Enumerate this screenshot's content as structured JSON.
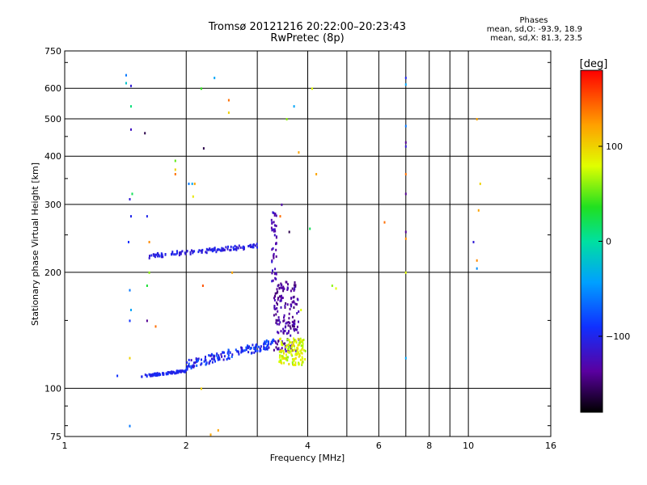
{
  "header": {
    "title": "Tromsø 20121216 20:22:00–20:23:43",
    "subtitle": "RwPretec (8p)"
  },
  "stats": {
    "heading": "Phases",
    "line_o": "mean, sd,O: -93.9, 18.9",
    "line_x": "mean, sd,X:  81.3, 23.5"
  },
  "colorbar": {
    "label": "[deg]",
    "min": -180,
    "max": 180,
    "ticks": [
      "100",
      "0",
      "−100"
    ],
    "tick_values": [
      100,
      0,
      -100
    ]
  },
  "chart_data": {
    "type": "scatter",
    "xlabel": "Frequency [MHz]",
    "ylabel": "Stationary phase Virtual Height [km]",
    "xscale": "log",
    "yscale": "log",
    "xlim": [
      1,
      16
    ],
    "ylim": [
      75,
      750
    ],
    "x_ticks": [
      1,
      2,
      4,
      6,
      8,
      10,
      16
    ],
    "x_tick_labels": [
      "1",
      "2",
      "4",
      "6",
      "8",
      "10",
      "16"
    ],
    "x_minor_ticks": [
      3,
      5,
      7,
      9
    ],
    "y_ticks": [
      75,
      100,
      200,
      300,
      400,
      500,
      600,
      750
    ],
    "y_tick_labels": [
      "75",
      "100",
      "200",
      "300",
      "400",
      "500",
      "600",
      "750"
    ],
    "grid": true,
    "clusters": [
      {
        "name_hint": "E-layer blue band",
        "x_range": [
          1.55,
          2.0
        ],
        "y_range": [
          107,
          112
        ],
        "count": 90,
        "phase": [
          -110,
          -90
        ]
      },
      {
        "name_hint": "E-layer rising trace",
        "x_range": [
          2.0,
          3.3
        ],
        "y_range": [
          112,
          135
        ],
        "count": 160,
        "phase": [
          -120,
          -70
        ]
      },
      {
        "name_hint": "Es upper trace",
        "x_range": [
          1.62,
          3.05
        ],
        "y_range": [
          218,
          238
        ],
        "count": 110,
        "phase": [
          -115,
          -95
        ]
      },
      {
        "name_hint": "F-layer cusp purple",
        "x_range": [
          3.3,
          3.8
        ],
        "y_range": [
          125,
          190
        ],
        "count": 170,
        "phase": [
          -150,
          -120
        ]
      },
      {
        "name_hint": "F-layer vertical rise",
        "x_range": [
          3.25,
          3.35
        ],
        "y_range": [
          190,
          290
        ],
        "count": 45,
        "phase": [
          -140,
          -110
        ]
      },
      {
        "name_hint": "X-mode yellow-green",
        "x_range": [
          3.4,
          3.95
        ],
        "y_range": [
          115,
          135
        ],
        "count": 130,
        "phase": [
          60,
          100
        ]
      },
      {
        "name_hint": "scattered noise",
        "x_range": [
          1.3,
          11
        ],
        "y_range": [
          76,
          680
        ],
        "count": 120,
        "phase": [
          -180,
          180
        ]
      }
    ],
    "points": [
      {
        "x": 1.42,
        "y": 650,
        "phase": -60
      },
      {
        "x": 1.42,
        "y": 620,
        "phase": -20
      },
      {
        "x": 1.46,
        "y": 610,
        "phase": -110
      },
      {
        "x": 1.46,
        "y": 540,
        "phase": 10
      },
      {
        "x": 1.46,
        "y": 470,
        "phase": -120
      },
      {
        "x": 1.45,
        "y": 310,
        "phase": -110
      },
      {
        "x": 1.46,
        "y": 280,
        "phase": -100
      },
      {
        "x": 1.47,
        "y": 320,
        "phase": 20
      },
      {
        "x": 1.44,
        "y": 240,
        "phase": -90
      },
      {
        "x": 1.45,
        "y": 180,
        "phase": -60
      },
      {
        "x": 1.46,
        "y": 160,
        "phase": -40
      },
      {
        "x": 1.45,
        "y": 150,
        "phase": -90
      },
      {
        "x": 1.45,
        "y": 120,
        "phase": 100
      },
      {
        "x": 1.45,
        "y": 80,
        "phase": -60
      },
      {
        "x": 1.35,
        "y": 108,
        "phase": -90
      },
      {
        "x": 1.58,
        "y": 460,
        "phase": -160
      },
      {
        "x": 1.6,
        "y": 280,
        "phase": -100
      },
      {
        "x": 1.62,
        "y": 240,
        "phase": 130
      },
      {
        "x": 1.62,
        "y": 200,
        "phase": 60
      },
      {
        "x": 1.6,
        "y": 185,
        "phase": 30
      },
      {
        "x": 1.6,
        "y": 150,
        "phase": -140
      },
      {
        "x": 1.68,
        "y": 145,
        "phase": 140
      },
      {
        "x": 1.88,
        "y": 390,
        "phase": 50
      },
      {
        "x": 1.88,
        "y": 370,
        "phase": 100
      },
      {
        "x": 1.88,
        "y": 360,
        "phase": 140
      },
      {
        "x": 2.03,
        "y": 340,
        "phase": -60
      },
      {
        "x": 2.07,
        "y": 340,
        "phase": -40
      },
      {
        "x": 2.1,
        "y": 340,
        "phase": 120
      },
      {
        "x": 2.08,
        "y": 315,
        "phase": 90
      },
      {
        "x": 2.18,
        "y": 600,
        "phase": 40
      },
      {
        "x": 2.21,
        "y": 420,
        "phase": -160
      },
      {
        "x": 2.2,
        "y": 185,
        "phase": 150
      },
      {
        "x": 2.18,
        "y": 100,
        "phase": 100
      },
      {
        "x": 2.35,
        "y": 640,
        "phase": -40
      },
      {
        "x": 2.55,
        "y": 560,
        "phase": 140
      },
      {
        "x": 2.55,
        "y": 520,
        "phase": 100
      },
      {
        "x": 2.6,
        "y": 200,
        "phase": 120
      },
      {
        "x": 2.4,
        "y": 78,
        "phase": 120
      },
      {
        "x": 2.3,
        "y": 76,
        "phase": 120
      },
      {
        "x": 3.55,
        "y": 500,
        "phase": 60
      },
      {
        "x": 3.7,
        "y": 540,
        "phase": -40
      },
      {
        "x": 3.8,
        "y": 410,
        "phase": 120
      },
      {
        "x": 4.1,
        "y": 600,
        "phase": 80
      },
      {
        "x": 4.2,
        "y": 360,
        "phase": 120
      },
      {
        "x": 4.05,
        "y": 260,
        "phase": 20
      },
      {
        "x": 3.85,
        "y": 160,
        "phase": 80
      },
      {
        "x": 4.6,
        "y": 185,
        "phase": 60
      },
      {
        "x": 4.7,
        "y": 182,
        "phase": 80
      },
      {
        "x": 6.2,
        "y": 270,
        "phase": 140
      },
      {
        "x": 7.0,
        "y": 640,
        "phase": -100
      },
      {
        "x": 7.0,
        "y": 615,
        "phase": -40
      },
      {
        "x": 7.0,
        "y": 480,
        "phase": -60
      },
      {
        "x": 7.0,
        "y": 435,
        "phase": -140
      },
      {
        "x": 7.0,
        "y": 425,
        "phase": -110
      },
      {
        "x": 7.0,
        "y": 360,
        "phase": 140
      },
      {
        "x": 7.0,
        "y": 320,
        "phase": -140
      },
      {
        "x": 7.0,
        "y": 255,
        "phase": -140
      },
      {
        "x": 7.0,
        "y": 245,
        "phase": 130
      },
      {
        "x": 7.0,
        "y": 200,
        "phase": 80
      },
      {
        "x": 7.0,
        "y": 120,
        "phase": -40
      },
      {
        "x": 10.5,
        "y": 500,
        "phase": 120
      },
      {
        "x": 10.7,
        "y": 340,
        "phase": 100
      },
      {
        "x": 10.6,
        "y": 290,
        "phase": 120
      },
      {
        "x": 10.3,
        "y": 240,
        "phase": -110
      },
      {
        "x": 10.5,
        "y": 215,
        "phase": 130
      },
      {
        "x": 10.5,
        "y": 205,
        "phase": -50
      },
      {
        "x": 3.45,
        "y": 300,
        "phase": -130
      },
      {
        "x": 3.42,
        "y": 280,
        "phase": 140
      },
      {
        "x": 3.6,
        "y": 255,
        "phase": -160
      }
    ]
  }
}
